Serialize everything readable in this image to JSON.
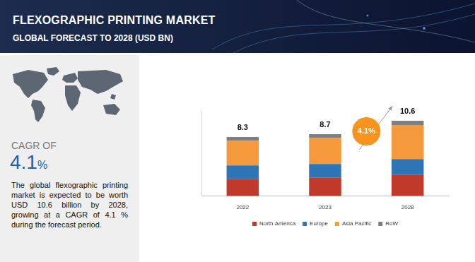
{
  "header": {
    "title": "FLEXOGRAPHIC PRINTING MARKET",
    "subtitle": "GLOBAL FORECAST TO 2028 (USD BN)"
  },
  "sidebar": {
    "cagr_label": "CAGR OF",
    "cagr_value": "4.1",
    "cagr_unit": "%",
    "description": "The global flexographic printing market is expected to be worth USD 10.6 billion by 2028, growing at a CAGR of 4.1 % during the forecast period."
  },
  "chart_data": {
    "type": "bar",
    "stacked": true,
    "categories": [
      "2022",
      "2023",
      "2028"
    ],
    "series": [
      {
        "name": "North America",
        "color": "#c0392b",
        "values": [
          2.4,
          2.6,
          3.0
        ]
      },
      {
        "name": "Europe",
        "color": "#2e75b6",
        "values": [
          1.9,
          1.9,
          2.2
        ]
      },
      {
        "name": "Asia Pacific",
        "color": "#f59a3c",
        "values": [
          3.5,
          3.7,
          4.8
        ]
      },
      {
        "name": "RoW",
        "color": "#7f7f7f",
        "values": [
          0.5,
          0.5,
          0.6
        ]
      }
    ],
    "totals": [
      8.3,
      8.7,
      10.6
    ],
    "annotation": "4.1%",
    "ylim": [
      0,
      12
    ],
    "grid": false,
    "legend": "bottom",
    "tick_labels": "x",
    "data_labels": false
  }
}
